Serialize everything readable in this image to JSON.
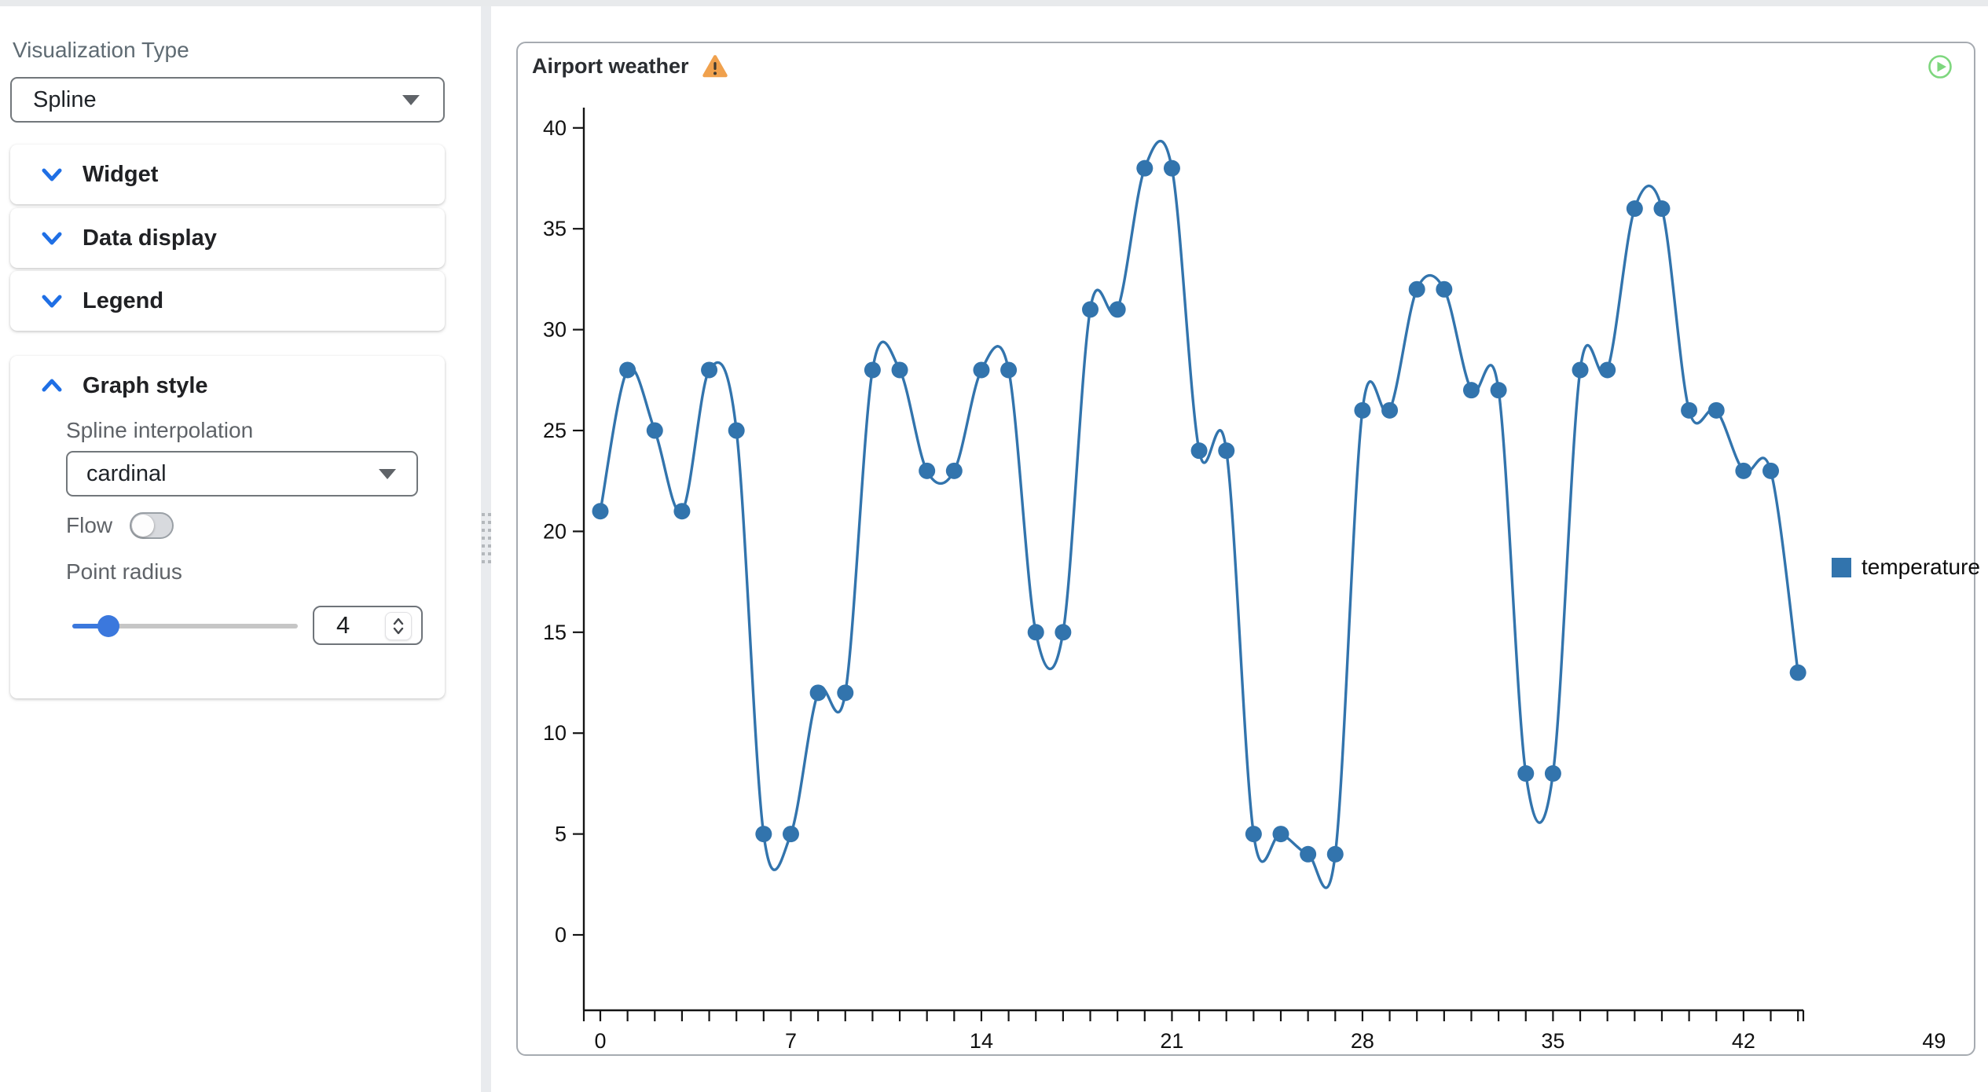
{
  "sidebar": {
    "visualization_type_label": "Visualization Type",
    "visualization_type_value": "Spline",
    "sections": [
      {
        "label": "Widget",
        "expanded": false
      },
      {
        "label": "Data display",
        "expanded": false
      },
      {
        "label": "Legend",
        "expanded": false
      }
    ],
    "graph_style": {
      "label": "Graph style",
      "expanded": true,
      "spline_interpolation_label": "Spline interpolation",
      "spline_interpolation_value": "cardinal",
      "flow_label": "Flow",
      "flow_enabled": false,
      "point_radius_label": "Point radius",
      "point_radius_value": "4",
      "point_radius_slider_max": 25
    }
  },
  "panel": {
    "title": "Airport weather",
    "warning_icon": "warning-triangle",
    "run_icon": "play-circle"
  },
  "chart_data": {
    "type": "line",
    "interpolation": "cardinal",
    "title": "Airport weather",
    "legend": "temperature",
    "legend_position": "right",
    "grid": false,
    "x": [
      0,
      1,
      2,
      3,
      4,
      5,
      6,
      7,
      8,
      9,
      10,
      11,
      12,
      13,
      14,
      15,
      16,
      17,
      18,
      19,
      20,
      21,
      22,
      23,
      24,
      25,
      26,
      27,
      28,
      29,
      30,
      31,
      32,
      33,
      34,
      35,
      36,
      37,
      38,
      39,
      40,
      41,
      42,
      43,
      44
    ],
    "series": [
      {
        "name": "temperature",
        "values": [
          21,
          28,
          25,
          21,
          28,
          25,
          5,
          5,
          12,
          12,
          28,
          28,
          23,
          23,
          28,
          28,
          15,
          15,
          31,
          31,
          38,
          38,
          24,
          24,
          5,
          5,
          4,
          4,
          26,
          26,
          32,
          32,
          27,
          27,
          8,
          8,
          28,
          28,
          36,
          36,
          26,
          26,
          23,
          23,
          13
        ]
      }
    ],
    "xlabel": "",
    "ylabel": "",
    "x_tick_labels": [
      0,
      7,
      14,
      21,
      28,
      35,
      42,
      49
    ],
    "y_tick_labels": [
      0,
      5,
      10,
      15,
      20,
      25,
      30,
      35,
      40
    ],
    "xlim": [
      -0.66,
      49
    ],
    "ylim": [
      -3.7,
      41
    ],
    "point_radius_px": 10.5
  },
  "colors": {
    "series_blue": "#3274ad",
    "accent_blue": "#1f6fe5",
    "slider_blue": "#3b78dd",
    "warning_orange": "#f0a14d",
    "warning_glyph": "#3f3a30",
    "play_green": "#7ed77e",
    "axis": "#141414"
  }
}
